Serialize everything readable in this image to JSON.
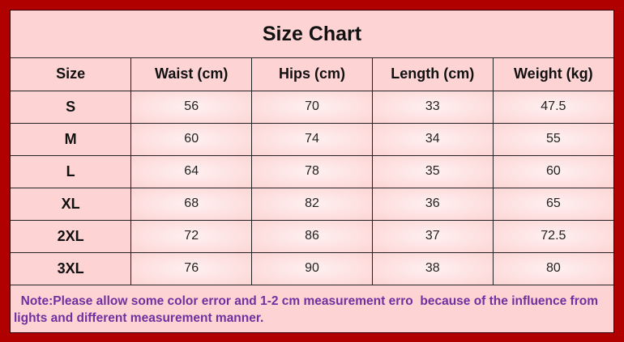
{
  "title": "Size Chart",
  "columns": [
    "Size",
    "Waist (cm)",
    "Hips (cm)",
    "Length (cm)",
    "Weight (kg)"
  ],
  "rows": [
    [
      "S",
      "56",
      "70",
      "33",
      "47.5"
    ],
    [
      "M",
      "60",
      "74",
      "34",
      "55"
    ],
    [
      "L",
      "64",
      "78",
      "35",
      "60"
    ],
    [
      "XL",
      "68",
      "82",
      "36",
      "65"
    ],
    [
      "2XL",
      "72",
      "86",
      "37",
      "72.5"
    ],
    [
      "3XL",
      "76",
      "90",
      "38",
      "80"
    ]
  ],
  "note": "  Note:Please allow some color error and 1-2 cm measurement erro  because of the influence from lights and different measurement manner.",
  "colors": {
    "frame": "#b00000",
    "background": "#fdd3d3",
    "note": "#7030a0"
  }
}
